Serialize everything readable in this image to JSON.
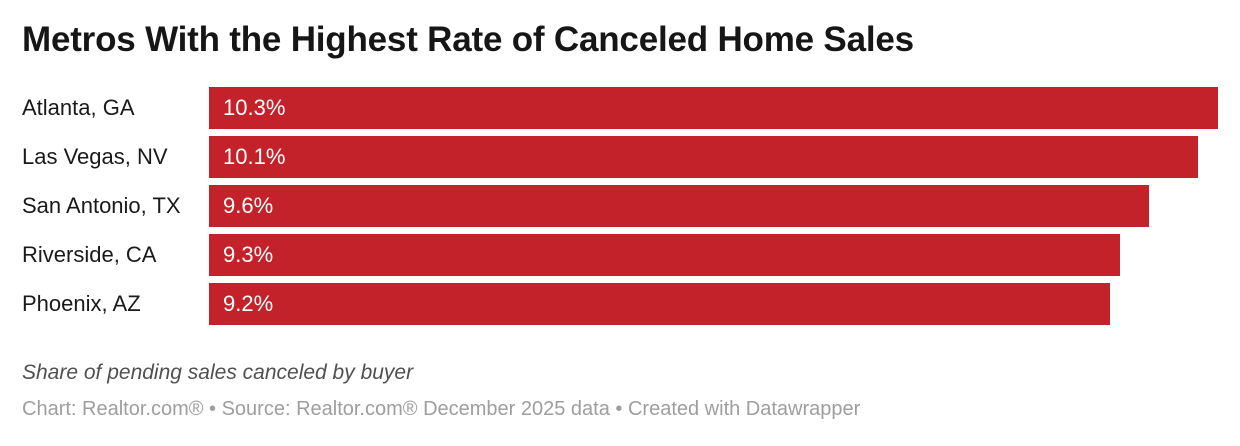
{
  "header": {
    "title": "Metros With the Highest Rate of Canceled Home Sales"
  },
  "chart_data": {
    "type": "bar",
    "orientation": "horizontal",
    "title": "Metros With the Highest Rate of Canceled Home Sales",
    "categories": [
      "Atlanta, GA",
      "Las Vegas, NV",
      "San Antonio, TX",
      "Riverside, CA",
      "Phoenix, AZ"
    ],
    "values": [
      10.3,
      10.1,
      9.6,
      9.3,
      9.2
    ],
    "value_labels": [
      "10.3%",
      "10.1%",
      "9.6%",
      "9.3%",
      "9.2%"
    ],
    "unit": "%",
    "xlabel": "",
    "ylabel": "",
    "xlim": [
      0,
      10.3
    ],
    "grid": false,
    "legend": false,
    "value_label_position": "inside-start",
    "bar_color": "#c4222a"
  },
  "footer": {
    "note": "Share of pending sales canceled by buyer",
    "byline": "Chart: Realtor.com® • Source: Realtor.com® December 2025 data • Created with Datawrapper"
  },
  "colors": {
    "bar": "#c4222a",
    "title": "#161616",
    "category_label": "#1a1a1a",
    "value_label": "#ffffff",
    "note": "#505050",
    "byline": "#9e9e9e",
    "background": "#ffffff"
  }
}
